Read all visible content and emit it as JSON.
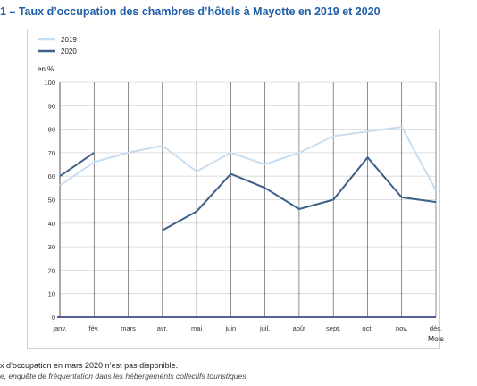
{
  "title": "1 – Taux d’occupation des chambres d’hôtels à Mayotte en 2019 et 2020",
  "notes": {
    "note": "x d’occupation en mars 2020 n’est pas disponible.",
    "source": "e, enquête de fréquentation dans les hébergements collectifs touristiques."
  },
  "chart_data": {
    "type": "line",
    "title": "1 – Taux d’occupation des chambres d’hôtels à Mayotte en 2019 et 2020",
    "ylabel": "en %",
    "xlabel": "Mois",
    "categories": [
      "janv.",
      "fév.",
      "mars",
      "avr.",
      "mai",
      "juin",
      "juil.",
      "août",
      "sept.",
      "oct.",
      "nov.",
      "déc."
    ],
    "ylim": [
      0,
      100
    ],
    "yticks": [
      0,
      10,
      20,
      30,
      40,
      50,
      60,
      70,
      80,
      90,
      100
    ],
    "grid": true,
    "legend_position": "top-left",
    "series": [
      {
        "name": "2019",
        "color": "#c9ddf0",
        "values": [
          56,
          66,
          70,
          73,
          62,
          70,
          65,
          70,
          77,
          79,
          81,
          54
        ]
      },
      {
        "name": "2020",
        "color": "#3e5f86",
        "values": [
          60,
          70,
          null,
          37,
          45,
          61,
          55,
          46,
          50,
          68,
          51,
          49
        ]
      }
    ]
  }
}
